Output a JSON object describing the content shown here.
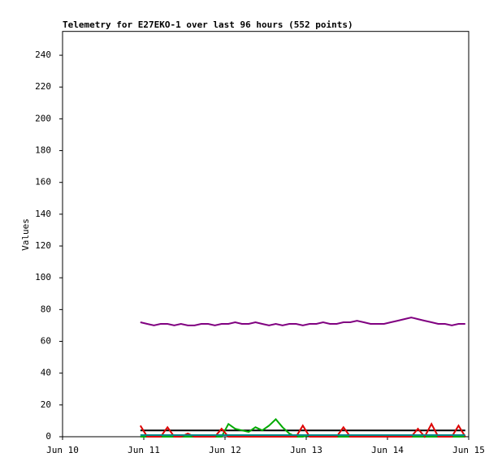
{
  "chart_data": {
    "type": "line",
    "title": "Telemetry for E27EKO-1 over last 96 hours (552 points)",
    "y_label": "Values",
    "x": [
      23,
      25,
      27,
      29,
      31,
      33,
      35,
      37,
      39,
      41,
      43,
      45,
      47,
      49,
      51,
      53,
      55,
      57,
      59,
      61,
      63,
      65,
      67,
      69,
      71,
      73,
      75,
      77,
      79,
      81,
      83,
      85,
      87,
      89,
      91,
      93,
      95,
      97,
      99,
      101,
      103,
      105,
      107,
      109,
      111,
      113,
      115,
      117,
      119
    ],
    "xlim": [
      0,
      120
    ],
    "xticks": [
      {
        "value": 0,
        "label": "Jun 10"
      },
      {
        "value": 24,
        "label": "Jun 11"
      },
      {
        "value": 48,
        "label": "Jun 12"
      },
      {
        "value": 72,
        "label": "Jun 13"
      },
      {
        "value": 96,
        "label": "Jun 14"
      },
      {
        "value": 120,
        "label": "Jun 15"
      }
    ],
    "ylim": [
      0,
      255
    ],
    "yticks": [
      0,
      20,
      40,
      60,
      80,
      100,
      120,
      140,
      160,
      180,
      200,
      220,
      240
    ],
    "series": [
      {
        "color": "#800080",
        "values": [
          72,
          71,
          70,
          71,
          71,
          70,
          71,
          70,
          70,
          71,
          71,
          70,
          71,
          71,
          72,
          71,
          71,
          72,
          71,
          70,
          71,
          70,
          71,
          71,
          70,
          71,
          71,
          72,
          71,
          71,
          72,
          72,
          73,
          72,
          71,
          71,
          71,
          72,
          73,
          74,
          75,
          74,
          73,
          72,
          71,
          71,
          70,
          71,
          71
        ]
      },
      {
        "color": "#000000",
        "values": [
          4,
          4,
          4,
          4,
          4,
          4,
          4,
          4,
          4,
          4,
          4,
          4,
          4,
          4,
          4,
          4,
          4,
          4,
          4,
          4,
          4,
          4,
          4,
          4,
          4,
          4,
          4,
          4,
          4,
          4,
          4,
          4,
          4,
          4,
          4,
          4,
          4,
          4,
          4,
          4,
          4,
          4,
          4,
          4,
          4,
          4,
          4,
          4,
          4
        ]
      },
      {
        "color": "#00aa00",
        "values": [
          0,
          0,
          0,
          0,
          0,
          0,
          0,
          0,
          0,
          0,
          0,
          0,
          0,
          8,
          5,
          4,
          3,
          6,
          4,
          7,
          11,
          6,
          2,
          0,
          0,
          1,
          0,
          0,
          0,
          0,
          0,
          0,
          0,
          0,
          0,
          0,
          0,
          0,
          0,
          0,
          0,
          0,
          0,
          0,
          0,
          0,
          0,
          0,
          0
        ]
      },
      {
        "color": "#dd0000",
        "values": [
          7,
          0,
          0,
          0,
          6,
          0,
          0,
          2,
          0,
          0,
          0,
          0,
          5,
          0,
          0,
          0,
          0,
          0,
          0,
          0,
          0,
          0,
          0,
          0,
          7,
          0,
          0,
          0,
          0,
          0,
          6,
          0,
          0,
          0,
          0,
          0,
          0,
          0,
          0,
          0,
          0,
          5,
          0,
          8,
          0,
          0,
          0,
          7,
          0
        ]
      },
      {
        "color": "#008b8b",
        "values": [
          1,
          1,
          1,
          1,
          1,
          1,
          1,
          1,
          1,
          1,
          1,
          1,
          1,
          1,
          1,
          1,
          1,
          1,
          1,
          1,
          1,
          1,
          1,
          1,
          1,
          1,
          1,
          1,
          1,
          1,
          1,
          1,
          1,
          1,
          1,
          1,
          1,
          1,
          1,
          1,
          1,
          1,
          1,
          1,
          1,
          1,
          1,
          1,
          1
        ]
      }
    ]
  }
}
